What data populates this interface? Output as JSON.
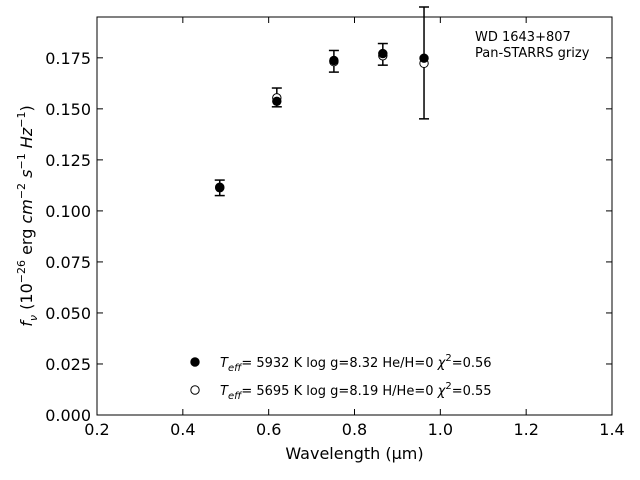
{
  "chart_data": {
    "type": "scatter",
    "xlabel": "Wavelength (μm)",
    "ylabel": "f_ν (10^-26 erg cm^-2 s^-1 Hz^-1)",
    "xlim": [
      0.2,
      1.4
    ],
    "ylim": [
      0.0,
      0.195
    ],
    "x_ticks": [
      0.2,
      0.4,
      0.6,
      0.8,
      1.0,
      1.2,
      1.4
    ],
    "x_tick_labels": [
      "0.2",
      "0.4",
      "0.6",
      "0.8",
      "1.0",
      "1.2",
      "1.4"
    ],
    "y_ticks": [
      0.0,
      0.025,
      0.05,
      0.075,
      0.1,
      0.125,
      0.15,
      0.175
    ],
    "y_tick_labels": [
      "0.000",
      "0.025",
      "0.050",
      "0.075",
      "0.100",
      "0.125",
      "0.150",
      "0.175"
    ],
    "grid": false,
    "annotation": [
      "WD 1643+807",
      "Pan-STARRS grizy"
    ],
    "observed": {
      "x": [
        0.486,
        0.619,
        0.752,
        0.866,
        0.962
      ],
      "y": [
        0.1113,
        0.1556,
        0.1733,
        0.1767,
        0.1725
      ],
      "yerr": [
        0.0038,
        0.0046,
        0.0053,
        0.0053,
        0.0274
      ]
    },
    "series": [
      {
        "marker": "filled-circle",
        "label_parts": [
          "T",
          "eff",
          "=  5932 K  log g=8.32  He/H=0  ",
          "χ",
          "2",
          "=0.56"
        ],
        "x": [
          0.486,
          0.619,
          0.752,
          0.866,
          0.962
        ],
        "y": [
          0.1113,
          0.1537,
          0.1737,
          0.1771,
          0.1748
        ]
      },
      {
        "marker": "open-circle",
        "label_parts": [
          "T",
          "eff",
          "=  5695 K  log g=8.19  H/He=0  ",
          "χ",
          "2",
          "=0.55"
        ],
        "x": [
          0.486,
          0.619,
          0.752,
          0.866,
          0.962
        ],
        "y": [
          0.1116,
          0.1554,
          0.1731,
          0.176,
          0.1723
        ]
      }
    ],
    "legend_placement": "lower-center"
  }
}
